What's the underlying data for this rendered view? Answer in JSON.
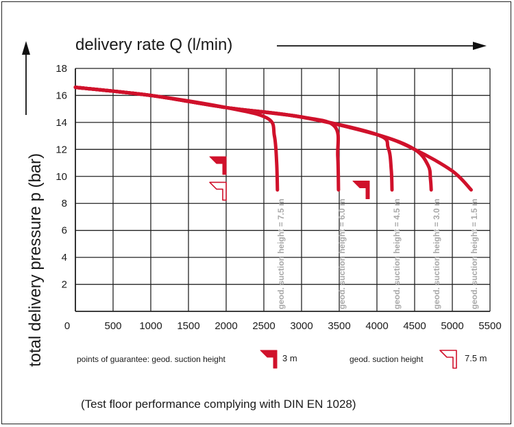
{
  "chart_data": {
    "type": "line",
    "xlabel": "delivery rate Q (l/min)",
    "ylabel": "total delivery pressure p (bar)",
    "xlim": [
      0,
      5500
    ],
    "ylim": [
      0,
      18
    ],
    "x_ticks": [
      0,
      500,
      1000,
      1500,
      2000,
      2500,
      3000,
      3500,
      4000,
      4500,
      5000,
      5500
    ],
    "y_ticks": [
      2,
      4,
      6,
      8,
      10,
      12,
      14,
      16,
      18
    ],
    "grid": true,
    "series": [
      {
        "name": "geod. suction height = 7.5 m",
        "x": [
          0,
          1000,
          2000,
          2550,
          2640,
          2670,
          2680
        ],
        "y": [
          16.6,
          16.0,
          15.1,
          14.3,
          13.0,
          11.0,
          9.0
        ]
      },
      {
        "name": "geod. suction height = 6.0 m",
        "x": [
          0,
          1000,
          2000,
          3000,
          3440,
          3480,
          3490
        ],
        "y": [
          16.6,
          16.0,
          15.1,
          14.4,
          13.7,
          11.5,
          9.0
        ]
      },
      {
        "name": "geod. suction height = 4.5 m",
        "x": [
          0,
          1000,
          2000,
          3000,
          4000,
          4150,
          4190,
          4200
        ],
        "y": [
          16.6,
          16.0,
          15.1,
          14.4,
          13.1,
          12.1,
          10.5,
          9.0
        ]
      },
      {
        "name": "geod. suction height = 3.0 m",
        "x": [
          0,
          1000,
          2000,
          3000,
          4000,
          4500,
          4680,
          4710,
          4720
        ],
        "y": [
          16.6,
          16.0,
          15.1,
          14.4,
          13.1,
          12.0,
          10.8,
          9.8,
          9.0
        ]
      },
      {
        "name": "geod. suction height = 1.5 m",
        "x": [
          0,
          1000,
          2000,
          3000,
          4000,
          4500,
          5000,
          5250
        ],
        "y": [
          16.6,
          16.0,
          15.1,
          14.4,
          13.1,
          12.0,
          10.4,
          9.0
        ]
      }
    ],
    "guarantee_points": [
      {
        "marker": "filled",
        "x": 2000,
        "y": 10.8
      },
      {
        "marker": "filled",
        "x": 3900,
        "y": 9.0
      },
      {
        "marker": "outline",
        "x": 2000,
        "y": 8.9
      }
    ],
    "legend": [
      {
        "marker": "filled",
        "label": "points of guarantee: geod. suction height",
        "value": "3 m"
      },
      {
        "marker": "outline",
        "label": "geod. suction height",
        "value": "7.5 m"
      }
    ],
    "footnote": "(Test floor performance complying with DIN EN 1028)",
    "colors": {
      "curve": "#d0112b",
      "grid": "#222222",
      "annotation": "#a8a8a8"
    }
  }
}
